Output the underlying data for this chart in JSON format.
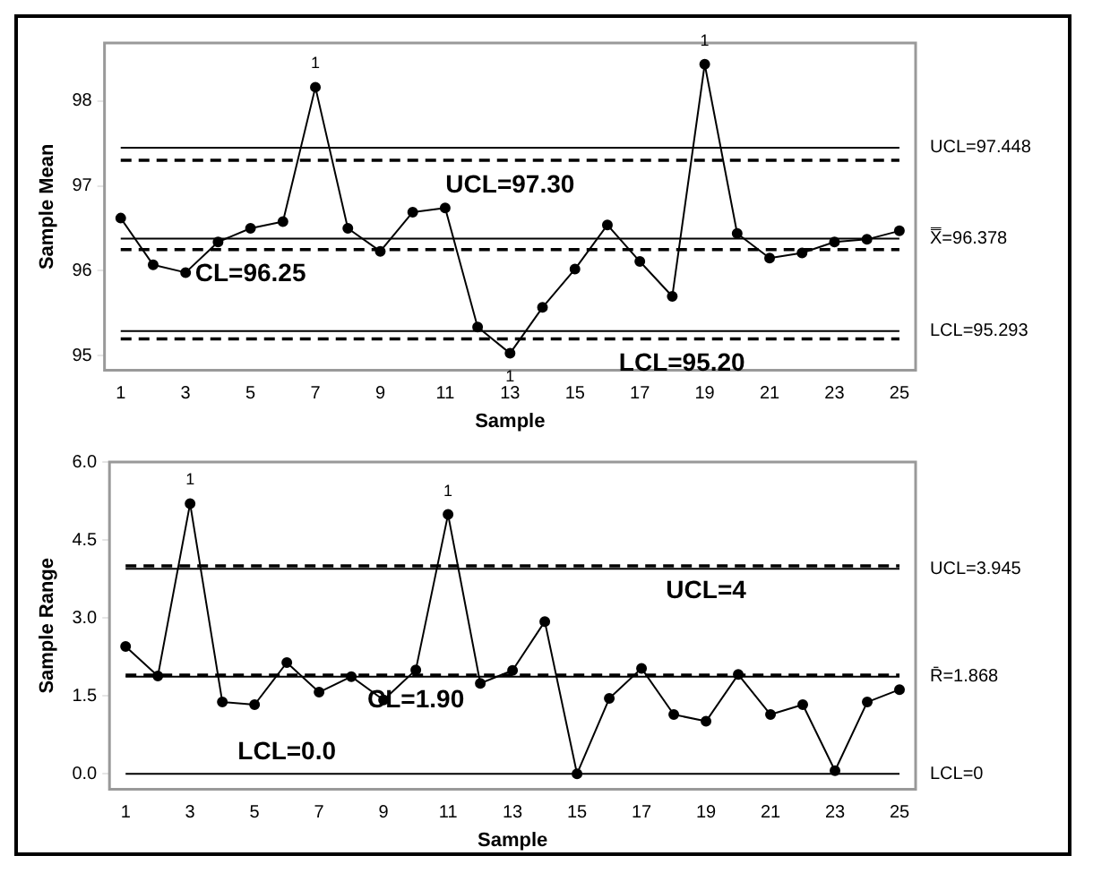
{
  "chart_data": [
    {
      "type": "line",
      "xlabel": "Sample",
      "ylabel": "Sample Mean",
      "x": [
        1,
        2,
        3,
        4,
        5,
        6,
        7,
        8,
        9,
        10,
        11,
        12,
        13,
        14,
        15,
        16,
        17,
        18,
        19,
        20,
        21,
        22,
        23,
        24,
        25
      ],
      "series": [
        {
          "color": "#000000",
          "values": [
            96.62,
            96.07,
            95.98,
            96.34,
            96.5,
            96.58,
            98.16,
            96.5,
            96.23,
            96.69,
            96.74,
            95.34,
            95.03,
            95.57,
            96.02,
            96.54,
            96.11,
            95.7,
            98.43,
            96.44,
            96.15,
            96.21,
            96.34,
            96.37,
            96.47
          ]
        }
      ],
      "xlim": [
        0.5,
        25.5
      ],
      "xticks": [
        1,
        3,
        5,
        7,
        9,
        11,
        13,
        15,
        17,
        19,
        21,
        23,
        25
      ],
      "ylim": [
        94.83,
        98.68
      ],
      "yticks": [
        95,
        96,
        97,
        98
      ],
      "grid": false,
      "legend": false,
      "marker": "circle",
      "line_style": "solid",
      "ref_lines": [
        {
          "axis": "y",
          "value": 97.448,
          "label": "UCL=97.448",
          "line_style": "solid"
        },
        {
          "axis": "y",
          "value": 96.378,
          "label": "X̿=96.378",
          "line_style": "solid"
        },
        {
          "axis": "y",
          "value": 95.293,
          "label": "LCL=95.293",
          "line_style": "solid"
        },
        {
          "axis": "y",
          "value": 97.3,
          "line_style": "dashed"
        },
        {
          "axis": "y",
          "value": 96.25,
          "line_style": "dashed"
        },
        {
          "axis": "y",
          "value": 95.2,
          "line_style": "dashed"
        }
      ],
      "annotations": [
        {
          "text": "UCL=97.30",
          "x": 13,
          "y": 97.3
        },
        {
          "text": "CL=96.25",
          "x": 5,
          "y": 96.25
        },
        {
          "text": "LCL=95.20",
          "x": 18.3,
          "y": 95.2
        },
        {
          "text": "1",
          "x": 7,
          "y": 98.16
        },
        {
          "text": "1",
          "x": 19,
          "y": 98.43
        },
        {
          "text": "1",
          "x": 13,
          "y": 95.03
        }
      ]
    },
    {
      "type": "line",
      "xlabel": "Sample",
      "ylabel": "Sample Range",
      "x": [
        1,
        2,
        3,
        4,
        5,
        6,
        7,
        8,
        9,
        10,
        11,
        12,
        13,
        14,
        15,
        16,
        17,
        18,
        19,
        20,
        21,
        22,
        23,
        24,
        25
      ],
      "series": [
        {
          "color": "#000000",
          "values": [
            2.45,
            1.88,
            5.2,
            1.38,
            1.33,
            2.14,
            1.57,
            1.87,
            1.42,
            2.0,
            4.99,
            1.74,
            1.99,
            2.93,
            0,
            1.45,
            2.03,
            1.14,
            1.01,
            1.91,
            1.14,
            1.33,
            0.06,
            1.38,
            1.62
          ]
        }
      ],
      "xlim": [
        0.5,
        25.5
      ],
      "xticks": [
        1,
        3,
        5,
        7,
        9,
        11,
        13,
        15,
        17,
        19,
        21,
        23,
        25
      ],
      "ylim": [
        -0.3,
        6.0
      ],
      "yticks": [
        {
          "value": 0,
          "label": "0.0"
        },
        {
          "value": 1.5,
          "label": "1.5"
        },
        {
          "value": 3,
          "label": "3.0"
        },
        {
          "value": 4.5,
          "label": "4.5"
        },
        {
          "value": 6,
          "label": "6.0"
        }
      ],
      "grid": false,
      "legend": false,
      "marker": "circle",
      "line_style": "solid",
      "ref_lines": [
        {
          "axis": "y",
          "value": 3.945,
          "label": "UCL=3.945",
          "line_style": "solid"
        },
        {
          "axis": "y",
          "value": 1.868,
          "label": "R̄=1.868",
          "line_style": "solid"
        },
        {
          "axis": "y",
          "value": 0,
          "label": "LCL=0",
          "line_style": "solid"
        },
        {
          "axis": "y",
          "value": 4,
          "line_style": "dashed"
        },
        {
          "axis": "y",
          "value": 1.9,
          "line_style": "dashed"
        }
      ],
      "annotations": [
        {
          "text": "UCL=4",
          "x": 19,
          "y": 4
        },
        {
          "text": "CL=1.90",
          "x": 10,
          "y": 1.9
        },
        {
          "text": "LCL=0.0",
          "x": 6,
          "y": 0
        },
        {
          "text": "1",
          "x": 3,
          "y": 5.2
        },
        {
          "text": "1",
          "x": 11,
          "y": 4.99
        }
      ]
    }
  ]
}
